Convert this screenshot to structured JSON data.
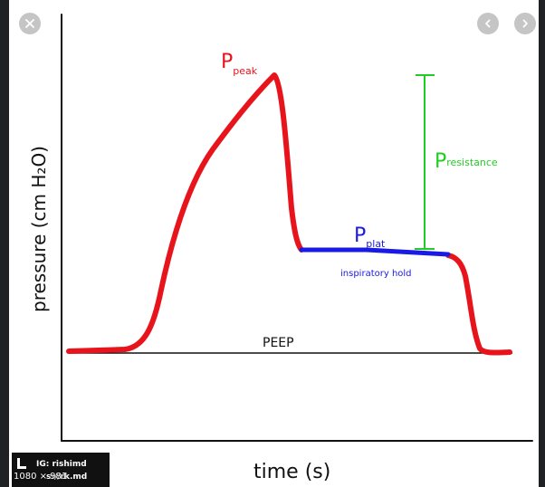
{
  "viewer": {
    "image_dimensions": "1080 × 981",
    "controls": {
      "close_icon": "close-icon",
      "prev_icon": "chevron-left-icon",
      "next_icon": "chevron-right-icon"
    }
  },
  "figure": {
    "y_axis_label": "pressure (cm H₂O)",
    "x_axis_label": "time (s)",
    "labels": {
      "p_peak_main": "P",
      "p_peak_sub": "peak",
      "p_plat_main": "P",
      "p_plat_sub": "plat",
      "p_resistance_main": "P",
      "p_resistance_sub": "resistance",
      "inspiratory_hold": "inspiratory hold",
      "peep": "PEEP"
    },
    "colors": {
      "curve": "#e8141c",
      "plateau": "#1a1ae6",
      "resistance": "#22cc22",
      "axis": "#111111"
    }
  },
  "watermark": {
    "ig": "IG: rishimd",
    "url": "s://rk.md"
  }
}
